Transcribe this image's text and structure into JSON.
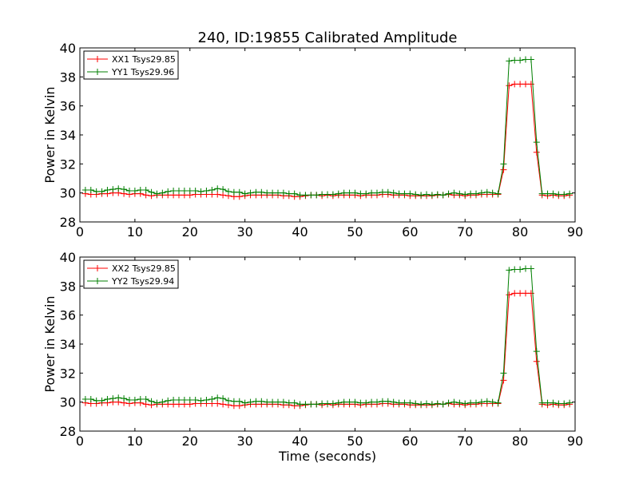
{
  "figure": {
    "title": "240, ID:19855 Calibrated Amplitude",
    "xlabel": "Time (seconds)"
  },
  "chart_data": [
    {
      "type": "line",
      "title": "240, ID:19855 Calibrated Amplitude",
      "ylabel": "Power in Kelvin",
      "xlabel": "",
      "xlim": [
        0,
        90
      ],
      "ylim": [
        28,
        40
      ],
      "xticks": [
        0,
        10,
        20,
        30,
        40,
        50,
        60,
        70,
        80,
        90
      ],
      "yticks": [
        28,
        30,
        32,
        34,
        36,
        38,
        40
      ],
      "grid": false,
      "legend": "top-left",
      "x": [
        1,
        2,
        3,
        4,
        5,
        6,
        7,
        8,
        9,
        10,
        11,
        12,
        13,
        14,
        15,
        16,
        17,
        18,
        19,
        20,
        21,
        22,
        23,
        24,
        25,
        26,
        27,
        28,
        29,
        30,
        31,
        32,
        33,
        34,
        35,
        36,
        37,
        38,
        39,
        40,
        41,
        42,
        43,
        44,
        45,
        46,
        47,
        48,
        49,
        50,
        51,
        52,
        53,
        54,
        55,
        56,
        57,
        58,
        59,
        60,
        61,
        62,
        63,
        64,
        65,
        66,
        67,
        68,
        69,
        70,
        71,
        72,
        73,
        74,
        75,
        76,
        77,
        78,
        79,
        80,
        81,
        82,
        83,
        84,
        85,
        86,
        87,
        88,
        89
      ],
      "series": [
        {
          "name": "XX1 Tsys29.85",
          "color": "#ff0000",
          "values": [
            29.95,
            29.9,
            29.9,
            29.95,
            29.95,
            30.0,
            30.0,
            29.95,
            29.9,
            29.95,
            29.95,
            29.85,
            29.8,
            29.85,
            29.85,
            29.85,
            29.85,
            29.85,
            29.85,
            29.85,
            29.9,
            29.9,
            29.9,
            29.9,
            29.9,
            29.85,
            29.8,
            29.75,
            29.75,
            29.8,
            29.85,
            29.85,
            29.85,
            29.85,
            29.85,
            29.85,
            29.8,
            29.8,
            29.75,
            29.75,
            29.8,
            29.85,
            29.85,
            29.8,
            29.85,
            29.8,
            29.85,
            29.85,
            29.85,
            29.85,
            29.8,
            29.85,
            29.85,
            29.85,
            29.9,
            29.9,
            29.85,
            29.85,
            29.85,
            29.8,
            29.8,
            29.8,
            29.8,
            29.8,
            29.85,
            29.85,
            29.9,
            29.85,
            29.85,
            29.8,
            29.85,
            29.85,
            29.9,
            29.9,
            29.9,
            29.9,
            31.6,
            37.4,
            37.5,
            37.5,
            37.5,
            37.5,
            32.8,
            29.85,
            29.8,
            29.85,
            29.8,
            29.8,
            29.85
          ]
        },
        {
          "name": "YY1 Tsys29.96",
          "color": "#007f00",
          "values": [
            30.2,
            30.2,
            30.1,
            30.1,
            30.2,
            30.25,
            30.3,
            30.25,
            30.15,
            30.15,
            30.2,
            30.2,
            30.05,
            29.95,
            30.0,
            30.1,
            30.15,
            30.15,
            30.15,
            30.15,
            30.15,
            30.1,
            30.15,
            30.2,
            30.3,
            30.25,
            30.1,
            30.05,
            30.05,
            29.95,
            30.0,
            30.05,
            30.05,
            30.0,
            30.0,
            30.0,
            30.0,
            29.95,
            29.95,
            29.85,
            29.85,
            29.85,
            29.85,
            29.9,
            29.9,
            29.9,
            29.95,
            30.0,
            30.0,
            30.0,
            29.95,
            29.95,
            30.0,
            30.0,
            30.05,
            30.05,
            30.0,
            29.95,
            29.95,
            29.95,
            29.9,
            29.85,
            29.9,
            29.85,
            29.9,
            29.85,
            29.95,
            30.0,
            29.95,
            29.9,
            29.95,
            29.95,
            30.0,
            30.05,
            30.0,
            29.95,
            32.0,
            39.1,
            39.15,
            39.15,
            39.2,
            39.2,
            33.5,
            29.95,
            29.95,
            29.95,
            29.9,
            29.9,
            29.95
          ]
        }
      ]
    },
    {
      "type": "line",
      "title": "",
      "ylabel": "Power in Kelvin",
      "xlabel": "Time (seconds)",
      "xlim": [
        0,
        90
      ],
      "ylim": [
        28,
        40
      ],
      "xticks": [
        0,
        10,
        20,
        30,
        40,
        50,
        60,
        70,
        80,
        90
      ],
      "yticks": [
        28,
        30,
        32,
        34,
        36,
        38,
        40
      ],
      "grid": false,
      "legend": "top-left",
      "x": [
        1,
        2,
        3,
        4,
        5,
        6,
        7,
        8,
        9,
        10,
        11,
        12,
        13,
        14,
        15,
        16,
        17,
        18,
        19,
        20,
        21,
        22,
        23,
        24,
        25,
        26,
        27,
        28,
        29,
        30,
        31,
        32,
        33,
        34,
        35,
        36,
        37,
        38,
        39,
        40,
        41,
        42,
        43,
        44,
        45,
        46,
        47,
        48,
        49,
        50,
        51,
        52,
        53,
        54,
        55,
        56,
        57,
        58,
        59,
        60,
        61,
        62,
        63,
        64,
        65,
        66,
        67,
        68,
        69,
        70,
        71,
        72,
        73,
        74,
        75,
        76,
        77,
        78,
        79,
        80,
        81,
        82,
        83,
        84,
        85,
        86,
        87,
        88,
        89
      ],
      "series": [
        {
          "name": "XX2 Tsys29.85",
          "color": "#ff0000",
          "values": [
            29.95,
            29.9,
            29.9,
            29.95,
            29.95,
            30.0,
            30.0,
            29.95,
            29.9,
            29.95,
            29.95,
            29.85,
            29.8,
            29.85,
            29.85,
            29.85,
            29.85,
            29.85,
            29.85,
            29.85,
            29.9,
            29.9,
            29.9,
            29.9,
            29.9,
            29.85,
            29.8,
            29.75,
            29.75,
            29.8,
            29.85,
            29.85,
            29.85,
            29.85,
            29.85,
            29.85,
            29.8,
            29.8,
            29.75,
            29.75,
            29.8,
            29.85,
            29.85,
            29.8,
            29.85,
            29.8,
            29.85,
            29.85,
            29.85,
            29.85,
            29.8,
            29.85,
            29.85,
            29.85,
            29.9,
            29.9,
            29.85,
            29.85,
            29.85,
            29.8,
            29.8,
            29.8,
            29.8,
            29.8,
            29.85,
            29.85,
            29.9,
            29.85,
            29.85,
            29.8,
            29.85,
            29.85,
            29.9,
            29.9,
            29.9,
            29.9,
            31.5,
            37.4,
            37.5,
            37.5,
            37.5,
            37.5,
            32.8,
            29.85,
            29.8,
            29.85,
            29.8,
            29.8,
            29.85
          ]
        },
        {
          "name": "YY2 Tsys29.94",
          "color": "#007f00",
          "values": [
            30.2,
            30.2,
            30.1,
            30.1,
            30.2,
            30.25,
            30.3,
            30.25,
            30.15,
            30.15,
            30.2,
            30.2,
            30.05,
            29.95,
            30.0,
            30.1,
            30.15,
            30.15,
            30.15,
            30.15,
            30.15,
            30.1,
            30.15,
            30.2,
            30.3,
            30.25,
            30.1,
            30.05,
            30.05,
            29.95,
            30.0,
            30.05,
            30.05,
            30.0,
            30.0,
            30.0,
            30.0,
            29.95,
            29.95,
            29.85,
            29.85,
            29.85,
            29.85,
            29.9,
            29.9,
            29.9,
            29.95,
            30.0,
            30.0,
            30.0,
            29.95,
            29.95,
            30.0,
            30.0,
            30.05,
            30.05,
            30.0,
            29.95,
            29.95,
            29.95,
            29.9,
            29.85,
            29.9,
            29.85,
            29.9,
            29.85,
            29.95,
            30.0,
            29.95,
            29.9,
            29.95,
            29.95,
            30.0,
            30.05,
            30.0,
            29.95,
            32.0,
            39.1,
            39.15,
            39.15,
            39.2,
            39.2,
            33.5,
            29.95,
            29.95,
            29.95,
            29.9,
            29.9,
            29.95
          ]
        }
      ]
    }
  ]
}
